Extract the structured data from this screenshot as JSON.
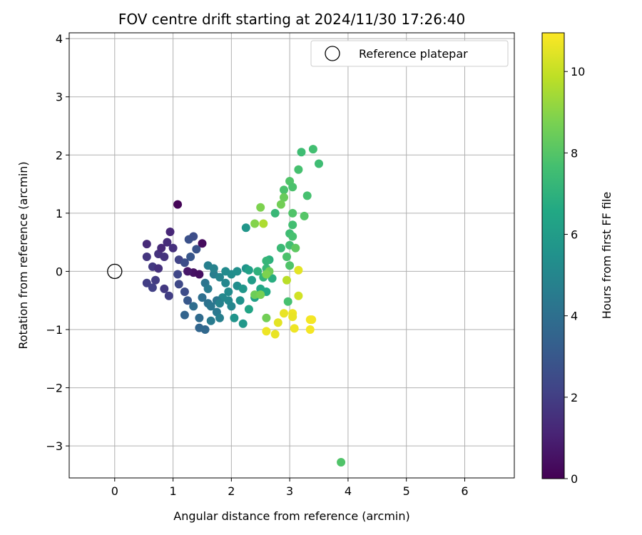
{
  "chart_data": {
    "type": "scatter",
    "title": "FOV centre drift starting at 2024/11/30 17:26:40",
    "xlabel": "Angular distance from reference (arcmin)",
    "ylabel": "Rotation from reference (arcmin)",
    "xlim": [
      -0.78,
      6.85
    ],
    "ylim": [
      -3.55,
      4.1
    ],
    "xticks": [
      0,
      1,
      2,
      3,
      4,
      5,
      6
    ],
    "yticks": [
      -3,
      -2,
      -1,
      0,
      1,
      2,
      3,
      4
    ],
    "grid": true,
    "legend": {
      "placement": "top-right",
      "entries": [
        "Reference platepar"
      ]
    },
    "reference_point": {
      "x": 0,
      "y": 0,
      "label": "Reference platepar"
    },
    "colorbar": {
      "label": "Hours from first FF file",
      "range": [
        0,
        10.95
      ],
      "ticks": [
        0,
        2,
        4,
        6,
        8,
        10
      ],
      "colormap": "viridis"
    },
    "series": [
      {
        "points": [
          [
            1.08,
            1.15,
            0.1
          ],
          [
            1.5,
            0.48,
            0.3
          ],
          [
            1.35,
            -0.02,
            0.5
          ],
          [
            1.45,
            -0.05,
            0.4
          ],
          [
            1.25,
            0.0,
            0.7
          ],
          [
            0.95,
            0.68,
            1.2
          ],
          [
            0.55,
            0.47,
            1.3
          ],
          [
            0.9,
            0.5,
            1.4
          ],
          [
            1.0,
            0.4,
            1.5
          ],
          [
            0.75,
            0.3,
            1.6
          ],
          [
            0.55,
            0.25,
            1.7
          ],
          [
            0.65,
            0.08,
            1.8
          ],
          [
            0.7,
            -0.15,
            1.9
          ],
          [
            0.75,
            0.05,
            1.5
          ],
          [
            0.85,
            0.25,
            1.6
          ],
          [
            0.8,
            0.4,
            1.3
          ],
          [
            0.55,
            -0.2,
            2.0
          ],
          [
            0.65,
            -0.28,
            2.1
          ],
          [
            0.85,
            -0.3,
            1.8
          ],
          [
            0.93,
            -0.42,
            2.0
          ],
          [
            1.1,
            0.2,
            2.2
          ],
          [
            1.08,
            -0.05,
            2.3
          ],
          [
            1.1,
            -0.22,
            2.4
          ],
          [
            1.2,
            -0.35,
            2.5
          ],
          [
            1.2,
            0.15,
            2.6
          ],
          [
            1.27,
            0.55,
            2.7
          ],
          [
            1.35,
            0.6,
            2.6
          ],
          [
            1.4,
            0.38,
            2.8
          ],
          [
            1.3,
            0.25,
            2.9
          ],
          [
            1.25,
            -0.5,
            3.0
          ],
          [
            1.2,
            -0.75,
            3.5
          ],
          [
            1.45,
            -0.97,
            3.6
          ],
          [
            1.55,
            -1.0,
            3.7
          ],
          [
            1.45,
            -0.8,
            3.8
          ],
          [
            1.35,
            -0.6,
            3.9
          ],
          [
            1.5,
            -0.45,
            4.0
          ],
          [
            1.6,
            -0.55,
            4.1
          ],
          [
            1.55,
            -0.2,
            4.2
          ],
          [
            1.65,
            -0.6,
            4.3
          ],
          [
            1.75,
            -0.7,
            4.4
          ],
          [
            1.6,
            -0.3,
            4.5
          ],
          [
            1.7,
            -0.05,
            4.6
          ],
          [
            1.6,
            0.1,
            4.7
          ],
          [
            1.7,
            0.05,
            4.8
          ],
          [
            1.8,
            -0.1,
            4.9
          ],
          [
            1.9,
            -0.2,
            5.0
          ],
          [
            1.85,
            -0.45,
            5.1
          ],
          [
            1.95,
            -0.35,
            5.2
          ],
          [
            2.0,
            -0.05,
            5.3
          ],
          [
            1.75,
            -0.5,
            4.3
          ],
          [
            1.65,
            -0.85,
            4.5
          ],
          [
            1.8,
            -0.8,
            4.7
          ],
          [
            2.0,
            -0.6,
            5.0
          ],
          [
            2.1,
            -0.25,
            5.3
          ],
          [
            2.15,
            -0.5,
            5.5
          ],
          [
            2.05,
            -0.8,
            5.6
          ],
          [
            2.2,
            -0.9,
            5.8
          ],
          [
            2.25,
            0.05,
            5.6
          ],
          [
            2.25,
            0.75,
            5.7
          ],
          [
            2.35,
            -0.15,
            6.0
          ],
          [
            2.4,
            -0.45,
            6.2
          ],
          [
            2.3,
            -0.65,
            6.4
          ],
          [
            2.5,
            -0.3,
            6.5
          ],
          [
            2.6,
            -0.35,
            6.6
          ],
          [
            2.7,
            -0.12,
            6.8
          ],
          [
            2.45,
            0.0,
            7.0
          ],
          [
            2.55,
            -0.1,
            7.1
          ],
          [
            2.6,
            0.05,
            7.3
          ],
          [
            2.65,
            0.2,
            6.9
          ],
          [
            2.6,
            0.18,
            7.2
          ],
          [
            2.75,
            1.0,
            7.3
          ],
          [
            2.85,
            0.4,
            7.4
          ],
          [
            3.0,
            0.65,
            7.5
          ],
          [
            3.05,
            0.8,
            7.6
          ],
          [
            3.05,
            0.6,
            7.7
          ],
          [
            3.0,
            0.45,
            7.6
          ],
          [
            2.95,
            0.25,
            7.8
          ],
          [
            3.0,
            0.1,
            7.9
          ],
          [
            2.97,
            -0.52,
            7.7
          ],
          [
            2.9,
            1.4,
            7.8
          ],
          [
            3.0,
            1.55,
            7.9
          ],
          [
            3.15,
            1.75,
            7.7
          ],
          [
            3.2,
            2.05,
            7.5
          ],
          [
            3.4,
            2.1,
            7.6
          ],
          [
            3.5,
            1.85,
            7.5
          ],
          [
            3.3,
            1.3,
            7.7
          ],
          [
            3.05,
            1.45,
            7.8
          ],
          [
            3.05,
            1.0,
            7.9
          ],
          [
            3.25,
            0.95,
            8.0
          ],
          [
            3.1,
            0.4,
            8.2
          ],
          [
            2.9,
            1.27,
            8.4
          ],
          [
            2.85,
            1.15,
            8.6
          ],
          [
            2.5,
            1.1,
            8.8
          ],
          [
            2.4,
            0.82,
            8.9
          ],
          [
            2.55,
            0.82,
            9.6
          ],
          [
            2.4,
            -0.4,
            8.5
          ],
          [
            2.5,
            -0.4,
            8.7
          ],
          [
            2.65,
            0.0,
            8.5
          ],
          [
            2.6,
            -0.05,
            8.8
          ],
          [
            2.6,
            -0.8,
            8.6
          ],
          [
            2.95,
            -0.15,
            9.8
          ],
          [
            3.15,
            0.02,
            10.5
          ],
          [
            3.15,
            -0.42,
            10.2
          ],
          [
            2.9,
            -0.72,
            10.6
          ],
          [
            3.05,
            -0.72,
            10.7
          ],
          [
            3.05,
            -0.78,
            10.6
          ],
          [
            2.8,
            -0.88,
            10.5
          ],
          [
            2.6,
            -1.03,
            10.7
          ],
          [
            2.75,
            -1.08,
            10.6
          ],
          [
            3.08,
            -0.98,
            10.7
          ],
          [
            3.35,
            -0.83,
            10.8
          ],
          [
            3.38,
            -0.83,
            10.8
          ],
          [
            3.35,
            -1.0,
            10.8
          ],
          [
            3.88,
            -3.28,
            7.9
          ],
          [
            2.3,
            0.02,
            6.2
          ],
          [
            2.1,
            0.0,
            5.4
          ],
          [
            2.2,
            -0.3,
            5.7
          ],
          [
            1.9,
            0.0,
            5.2
          ],
          [
            1.95,
            -0.5,
            5.1
          ],
          [
            1.8,
            -0.55,
            4.8
          ]
        ]
      }
    ]
  }
}
